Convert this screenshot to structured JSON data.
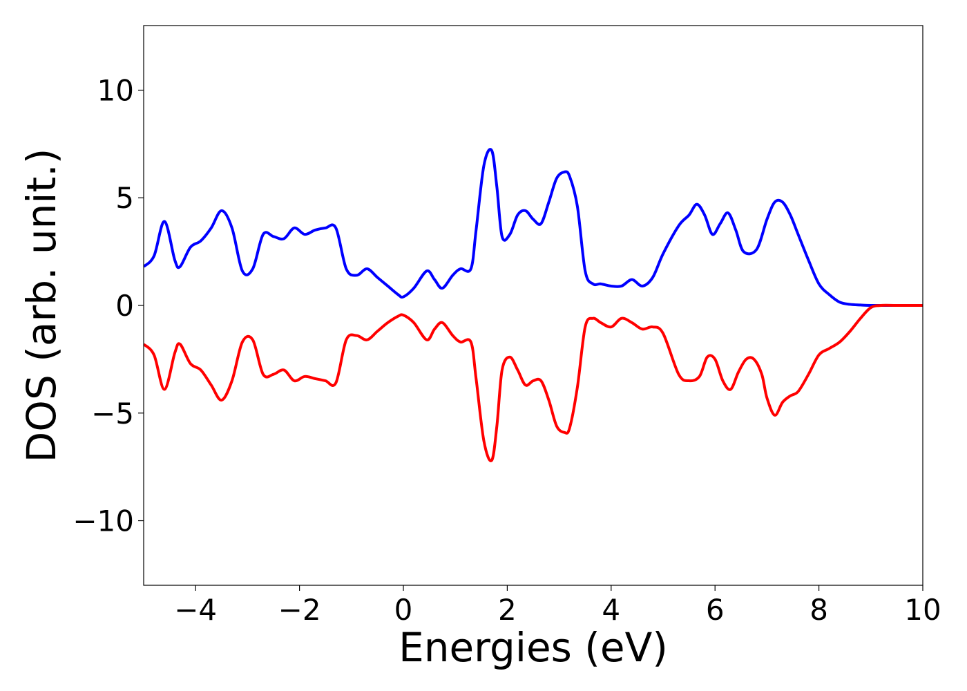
{
  "chart_data": {
    "type": "line",
    "title": "",
    "xlabel": "Energies (eV)",
    "ylabel": "DOS (arb. unit.)",
    "xlim": [
      -5,
      10
    ],
    "ylim": [
      -13,
      13
    ],
    "x_ticks": [
      -4,
      -2,
      0,
      2,
      4,
      6,
      8,
      10
    ],
    "y_ticks": [
      -10,
      -5,
      0,
      5,
      10
    ],
    "x_tick_labels": [
      "−4",
      "−2",
      "0",
      "2",
      "4",
      "6",
      "8",
      "10"
    ],
    "y_tick_labels": [
      "−10",
      "−5",
      "0",
      "5",
      "10"
    ],
    "grid": false,
    "legend": "none",
    "series": [
      {
        "color": "#0000ff",
        "x": [
          -5.0,
          -4.8,
          -4.6,
          -4.4,
          -4.3,
          -4.1,
          -3.9,
          -3.7,
          -3.5,
          -3.3,
          -3.1,
          -2.9,
          -2.7,
          -2.5,
          -2.3,
          -2.1,
          -1.9,
          -1.7,
          -1.5,
          -1.3,
          -1.1,
          -0.9,
          -0.7,
          -0.5,
          -0.3,
          -0.1,
          0.0,
          0.2,
          0.45,
          0.6,
          0.75,
          0.95,
          1.1,
          1.3,
          1.4,
          1.55,
          1.7,
          1.8,
          1.9,
          2.05,
          2.2,
          2.35,
          2.5,
          2.65,
          2.8,
          2.95,
          3.1,
          3.2,
          3.35,
          3.5,
          3.65,
          3.8,
          4.0,
          4.2,
          4.4,
          4.6,
          4.8,
          5.0,
          5.3,
          5.5,
          5.65,
          5.8,
          5.95,
          6.1,
          6.25,
          6.4,
          6.55,
          6.8,
          7.0,
          7.15,
          7.3,
          7.45,
          7.6,
          7.8,
          8.0,
          8.2,
          8.4,
          8.6,
          8.8,
          9.0,
          9.5,
          10.0
        ],
        "y": [
          1.8,
          2.3,
          3.9,
          2.1,
          1.8,
          2.7,
          3.0,
          3.6,
          4.4,
          3.6,
          1.6,
          1.7,
          3.3,
          3.2,
          3.1,
          3.6,
          3.3,
          3.5,
          3.6,
          3.6,
          1.7,
          1.4,
          1.7,
          1.3,
          0.9,
          0.5,
          0.4,
          0.8,
          1.6,
          1.2,
          0.8,
          1.4,
          1.7,
          1.7,
          3.5,
          6.5,
          7.2,
          5.5,
          3.2,
          3.3,
          4.2,
          4.4,
          4.0,
          3.8,
          4.8,
          5.9,
          6.2,
          6.0,
          4.6,
          1.6,
          1.0,
          1.0,
          0.9,
          0.9,
          1.2,
          0.9,
          1.3,
          2.4,
          3.7,
          4.2,
          4.7,
          4.2,
          3.3,
          3.8,
          4.3,
          3.5,
          2.5,
          2.6,
          4.0,
          4.8,
          4.8,
          4.2,
          3.3,
          2.1,
          1.0,
          0.5,
          0.15,
          0.05,
          0.02,
          0.0,
          0.0,
          0.0
        ]
      },
      {
        "color": "#ff0000",
        "x": [
          -5.0,
          -4.8,
          -4.6,
          -4.4,
          -4.3,
          -4.1,
          -3.9,
          -3.7,
          -3.5,
          -3.3,
          -3.1,
          -2.9,
          -2.7,
          -2.5,
          -2.3,
          -2.1,
          -1.9,
          -1.7,
          -1.5,
          -1.3,
          -1.1,
          -0.9,
          -0.7,
          -0.5,
          -0.3,
          -0.1,
          0.0,
          0.2,
          0.45,
          0.6,
          0.75,
          0.95,
          1.1,
          1.3,
          1.4,
          1.55,
          1.7,
          1.8,
          1.9,
          2.05,
          2.2,
          2.35,
          2.5,
          2.65,
          2.8,
          2.95,
          3.1,
          3.2,
          3.35,
          3.5,
          3.65,
          3.8,
          4.0,
          4.2,
          4.4,
          4.6,
          4.8,
          5.0,
          5.3,
          5.5,
          5.7,
          5.85,
          6.0,
          6.15,
          6.3,
          6.45,
          6.6,
          6.75,
          6.9,
          7.0,
          7.15,
          7.3,
          7.45,
          7.6,
          7.8,
          8.0,
          8.2,
          8.4,
          8.6,
          8.8,
          9.0,
          9.2,
          9.5,
          10.0
        ],
        "y": [
          -1.8,
          -2.3,
          -3.9,
          -2.2,
          -1.8,
          -2.7,
          -3.0,
          -3.7,
          -4.4,
          -3.5,
          -1.7,
          -1.6,
          -3.2,
          -3.2,
          -3.0,
          -3.5,
          -3.3,
          -3.4,
          -3.5,
          -3.6,
          -1.6,
          -1.4,
          -1.6,
          -1.2,
          -0.8,
          -0.5,
          -0.45,
          -0.8,
          -1.6,
          -1.1,
          -0.8,
          -1.4,
          -1.7,
          -1.7,
          -3.4,
          -6.3,
          -7.2,
          -5.6,
          -3.0,
          -2.4,
          -3.0,
          -3.7,
          -3.5,
          -3.5,
          -4.4,
          -5.6,
          -5.9,
          -5.7,
          -3.8,
          -1.0,
          -0.6,
          -0.8,
          -1.0,
          -0.6,
          -0.8,
          -1.1,
          -1.0,
          -1.3,
          -3.2,
          -3.5,
          -3.3,
          -2.4,
          -2.5,
          -3.5,
          -3.9,
          -3.1,
          -2.5,
          -2.5,
          -3.2,
          -4.3,
          -5.1,
          -4.5,
          -4.2,
          -4.0,
          -3.2,
          -2.3,
          -2.0,
          -1.7,
          -1.2,
          -0.6,
          -0.1,
          0.0,
          0.0,
          0.0
        ]
      }
    ]
  }
}
